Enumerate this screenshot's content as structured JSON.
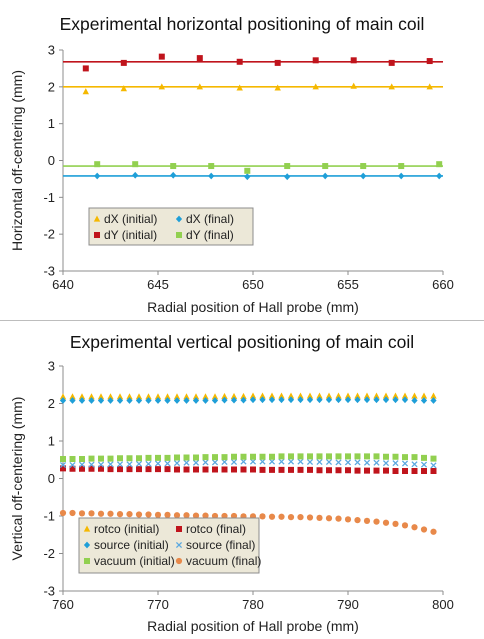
{
  "chart_data": [
    {
      "type": "scatter",
      "title": "Experimental horizontal positioning of main coil",
      "xlabel": "Radial position of Hall probe (mm)",
      "ylabel": "Horizontal off-centering (mm)",
      "xlim": [
        640,
        660
      ],
      "ylim": [
        -3,
        3
      ],
      "xticks": [
        "640",
        "645",
        "650",
        "655",
        "660"
      ],
      "yticks": [
        "-3",
        "-2",
        "-1",
        "0",
        "1",
        "2",
        "3"
      ],
      "grid": false,
      "legend_position": "lower-left",
      "legend_columns": 2,
      "series": [
        {
          "name": "dX (initial)",
          "marker": "triangle",
          "color": "#f5b800",
          "x": [
            641.2,
            643.2,
            645.2,
            647.2,
            649.3,
            651.3,
            653.3,
            655.3,
            657.3,
            659.3
          ],
          "y": [
            1.87,
            1.95,
            2.0,
            2.0,
            1.97,
            1.97,
            2.0,
            2.02,
            2.0,
            2.0
          ],
          "fit": 2.0
        },
        {
          "name": "dX (final)",
          "marker": "diamond",
          "color": "#1f9fd8",
          "x": [
            641.8,
            643.8,
            645.8,
            647.8,
            649.7,
            651.8,
            653.8,
            655.8,
            657.8,
            659.8
          ],
          "y": [
            -0.42,
            -0.4,
            -0.4,
            -0.42,
            -0.44,
            -0.44,
            -0.42,
            -0.42,
            -0.42,
            -0.42
          ],
          "fit": -0.42
        },
        {
          "name": "dY (initial)",
          "marker": "square",
          "color": "#c0141c",
          "x": [
            641.2,
            643.2,
            645.2,
            647.2,
            649.3,
            651.3,
            653.3,
            655.3,
            657.3,
            659.3
          ],
          "y": [
            2.5,
            2.65,
            2.82,
            2.78,
            2.68,
            2.65,
            2.72,
            2.72,
            2.65,
            2.7
          ],
          "fit": 2.68
        },
        {
          "name": "dY (final)",
          "marker": "square",
          "color": "#92d050",
          "x": [
            641.8,
            643.8,
            645.8,
            647.8,
            649.7,
            651.8,
            653.8,
            655.8,
            657.8,
            659.8
          ],
          "y": [
            -0.1,
            -0.1,
            -0.15,
            -0.15,
            -0.28,
            -0.15,
            -0.15,
            -0.15,
            -0.15,
            -0.1
          ],
          "fit": -0.15
        }
      ]
    },
    {
      "type": "scatter",
      "title": "Experimental vertical positioning of main coil",
      "xlabel": "Radial position of Hall probe (mm)",
      "ylabel": "Vertical off-centering (mm)",
      "xlim": [
        760,
        800
      ],
      "ylim": [
        -3,
        3
      ],
      "xticks": [
        "760",
        "770",
        "780",
        "790",
        "800"
      ],
      "yticks": [
        "-3",
        "-2",
        "-1",
        "0",
        "1",
        "2",
        "3"
      ],
      "grid": false,
      "legend_position": "lower-left",
      "legend_columns": 2,
      "series": [
        {
          "name": "rotco (initial)",
          "marker": "triangle",
          "color": "#f5b800",
          "x_start": 760,
          "x_step": 1,
          "count": 40,
          "y": [
            2.18,
            2.18,
            2.18,
            2.18,
            2.18,
            2.18,
            2.18,
            2.18,
            2.18,
            2.18,
            2.18,
            2.18,
            2.18,
            2.18,
            2.18,
            2.18,
            2.18,
            2.19,
            2.19,
            2.19,
            2.2,
            2.2,
            2.2,
            2.2,
            2.2,
            2.2,
            2.2,
            2.2,
            2.2,
            2.2,
            2.2,
            2.2,
            2.2,
            2.2,
            2.2,
            2.2,
            2.2,
            2.2,
            2.2,
            2.2
          ]
        },
        {
          "name": "rotco (final)",
          "marker": "square",
          "color": "#c0141c",
          "x_start": 760,
          "x_step": 1,
          "count": 40,
          "y": [
            0.27,
            0.26,
            0.26,
            0.26,
            0.26,
            0.25,
            0.25,
            0.25,
            0.25,
            0.25,
            0.25,
            0.25,
            0.24,
            0.24,
            0.24,
            0.24,
            0.24,
            0.24,
            0.24,
            0.24,
            0.24,
            0.23,
            0.23,
            0.23,
            0.23,
            0.23,
            0.23,
            0.22,
            0.22,
            0.22,
            0.22,
            0.21,
            0.21,
            0.21,
            0.21,
            0.2,
            0.2,
            0.2,
            0.2,
            0.2
          ]
        },
        {
          "name": "source (initial)",
          "marker": "diamond",
          "color": "#1f9fd8",
          "x_start": 760,
          "x_step": 1,
          "count": 40,
          "y": [
            2.08,
            2.08,
            2.08,
            2.08,
            2.08,
            2.08,
            2.08,
            2.08,
            2.08,
            2.08,
            2.08,
            2.08,
            2.08,
            2.08,
            2.08,
            2.08,
            2.08,
            2.09,
            2.09,
            2.09,
            2.1,
            2.1,
            2.1,
            2.1,
            2.1,
            2.1,
            2.1,
            2.1,
            2.1,
            2.1,
            2.1,
            2.1,
            2.1,
            2.1,
            2.1,
            2.1,
            2.1,
            2.08,
            2.08,
            2.08
          ]
        },
        {
          "name": "source (final)",
          "marker": "x",
          "color": "#5aa8e0",
          "x_start": 760,
          "x_step": 1,
          "count": 40,
          "y": [
            0.36,
            0.36,
            0.37,
            0.37,
            0.37,
            0.38,
            0.38,
            0.38,
            0.39,
            0.39,
            0.4,
            0.4,
            0.41,
            0.42,
            0.42,
            0.43,
            0.43,
            0.44,
            0.44,
            0.45,
            0.45,
            0.45,
            0.45,
            0.45,
            0.45,
            0.45,
            0.44,
            0.44,
            0.44,
            0.43,
            0.43,
            0.43,
            0.42,
            0.42,
            0.41,
            0.41,
            0.4,
            0.38,
            0.37,
            0.35
          ]
        },
        {
          "name": "vacuum (initial)",
          "marker": "square",
          "color": "#92d050",
          "x_start": 760,
          "x_step": 1,
          "count": 40,
          "y": [
            0.52,
            0.52,
            0.52,
            0.53,
            0.53,
            0.53,
            0.54,
            0.54,
            0.54,
            0.55,
            0.55,
            0.55,
            0.56,
            0.56,
            0.56,
            0.57,
            0.57,
            0.57,
            0.58,
            0.58,
            0.58,
            0.58,
            0.58,
            0.59,
            0.59,
            0.59,
            0.59,
            0.59,
            0.59,
            0.59,
            0.59,
            0.59,
            0.59,
            0.59,
            0.58,
            0.58,
            0.57,
            0.57,
            0.55,
            0.53
          ]
        },
        {
          "name": "vacuum (final)",
          "marker": "circle",
          "color": "#e8894a",
          "x_start": 760,
          "x_step": 1,
          "count": 40,
          "y": [
            -0.92,
            -0.92,
            -0.93,
            -0.93,
            -0.94,
            -0.94,
            -0.95,
            -0.95,
            -0.96,
            -0.96,
            -0.97,
            -0.97,
            -0.98,
            -0.98,
            -0.99,
            -0.99,
            -1.0,
            -1.0,
            -1.0,
            -1.01,
            -1.01,
            -1.01,
            -1.02,
            -1.02,
            -1.03,
            -1.03,
            -1.04,
            -1.05,
            -1.06,
            -1.07,
            -1.09,
            -1.11,
            -1.13,
            -1.15,
            -1.18,
            -1.21,
            -1.25,
            -1.3,
            -1.36,
            -1.42
          ]
        }
      ]
    }
  ]
}
